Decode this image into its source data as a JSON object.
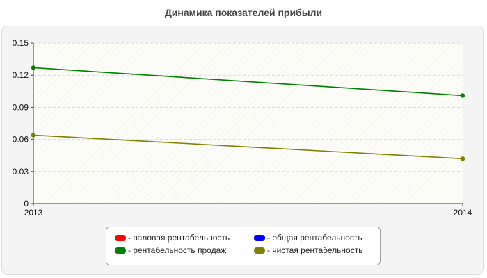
{
  "chart_data": {
    "type": "line",
    "title": "Динамика показателей прибыли",
    "x": [
      "2013",
      "2014"
    ],
    "ylim": [
      0,
      0.15
    ],
    "yticks": [
      "0",
      "0.03",
      "0.06",
      "0.09",
      "0.12",
      "0.15"
    ],
    "grid": true,
    "legend_position": "bottom",
    "series": [
      {
        "name": "- валовая рентабельность",
        "color": "#ff0000",
        "values": [
          null,
          null
        ]
      },
      {
        "name": "- общая рентабельность",
        "color": "#0000ff",
        "values": [
          null,
          null
        ]
      },
      {
        "name": "- рентабельность продаж",
        "color": "#008000",
        "values": [
          0.127,
          0.101
        ]
      },
      {
        "name": "- чистая рентабельность",
        "color": "#808000",
        "values": [
          0.064,
          0.042
        ]
      }
    ]
  }
}
